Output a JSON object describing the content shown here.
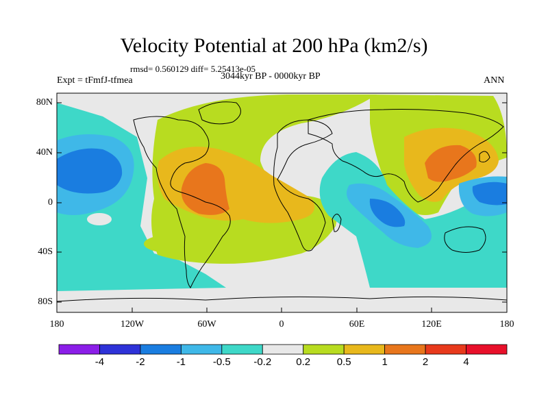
{
  "title": "Velocity Potential at 200 hPa (km2/s)",
  "stats_line": "rmsd= 0.560129 diff= 5.25413e-05",
  "experiment": "Expt = tFmfJ-tfmea",
  "period": "3044kyr BP - 0000kyr BP",
  "season": "ANN",
  "lat_labels": [
    "80N",
    "40N",
    "0",
    "40S",
    "80S"
  ],
  "lon_labels": [
    "180",
    "120W",
    "60W",
    "0",
    "60E",
    "120E",
    "180"
  ],
  "colorbar": {
    "labels": [
      "-4",
      "-2",
      "-1",
      "-0.5",
      "-0.2",
      "0.2",
      "0.5",
      "1",
      "2",
      "4"
    ],
    "colors": [
      "#8b1ee8",
      "#2e32d8",
      "#1a7de0",
      "#3fb8e8",
      "#3ed8c8",
      "#e8e8e8",
      "#b8dc20",
      "#e8b81c",
      "#e8761c",
      "#e83a1c",
      "#e8102a"
    ]
  }
}
